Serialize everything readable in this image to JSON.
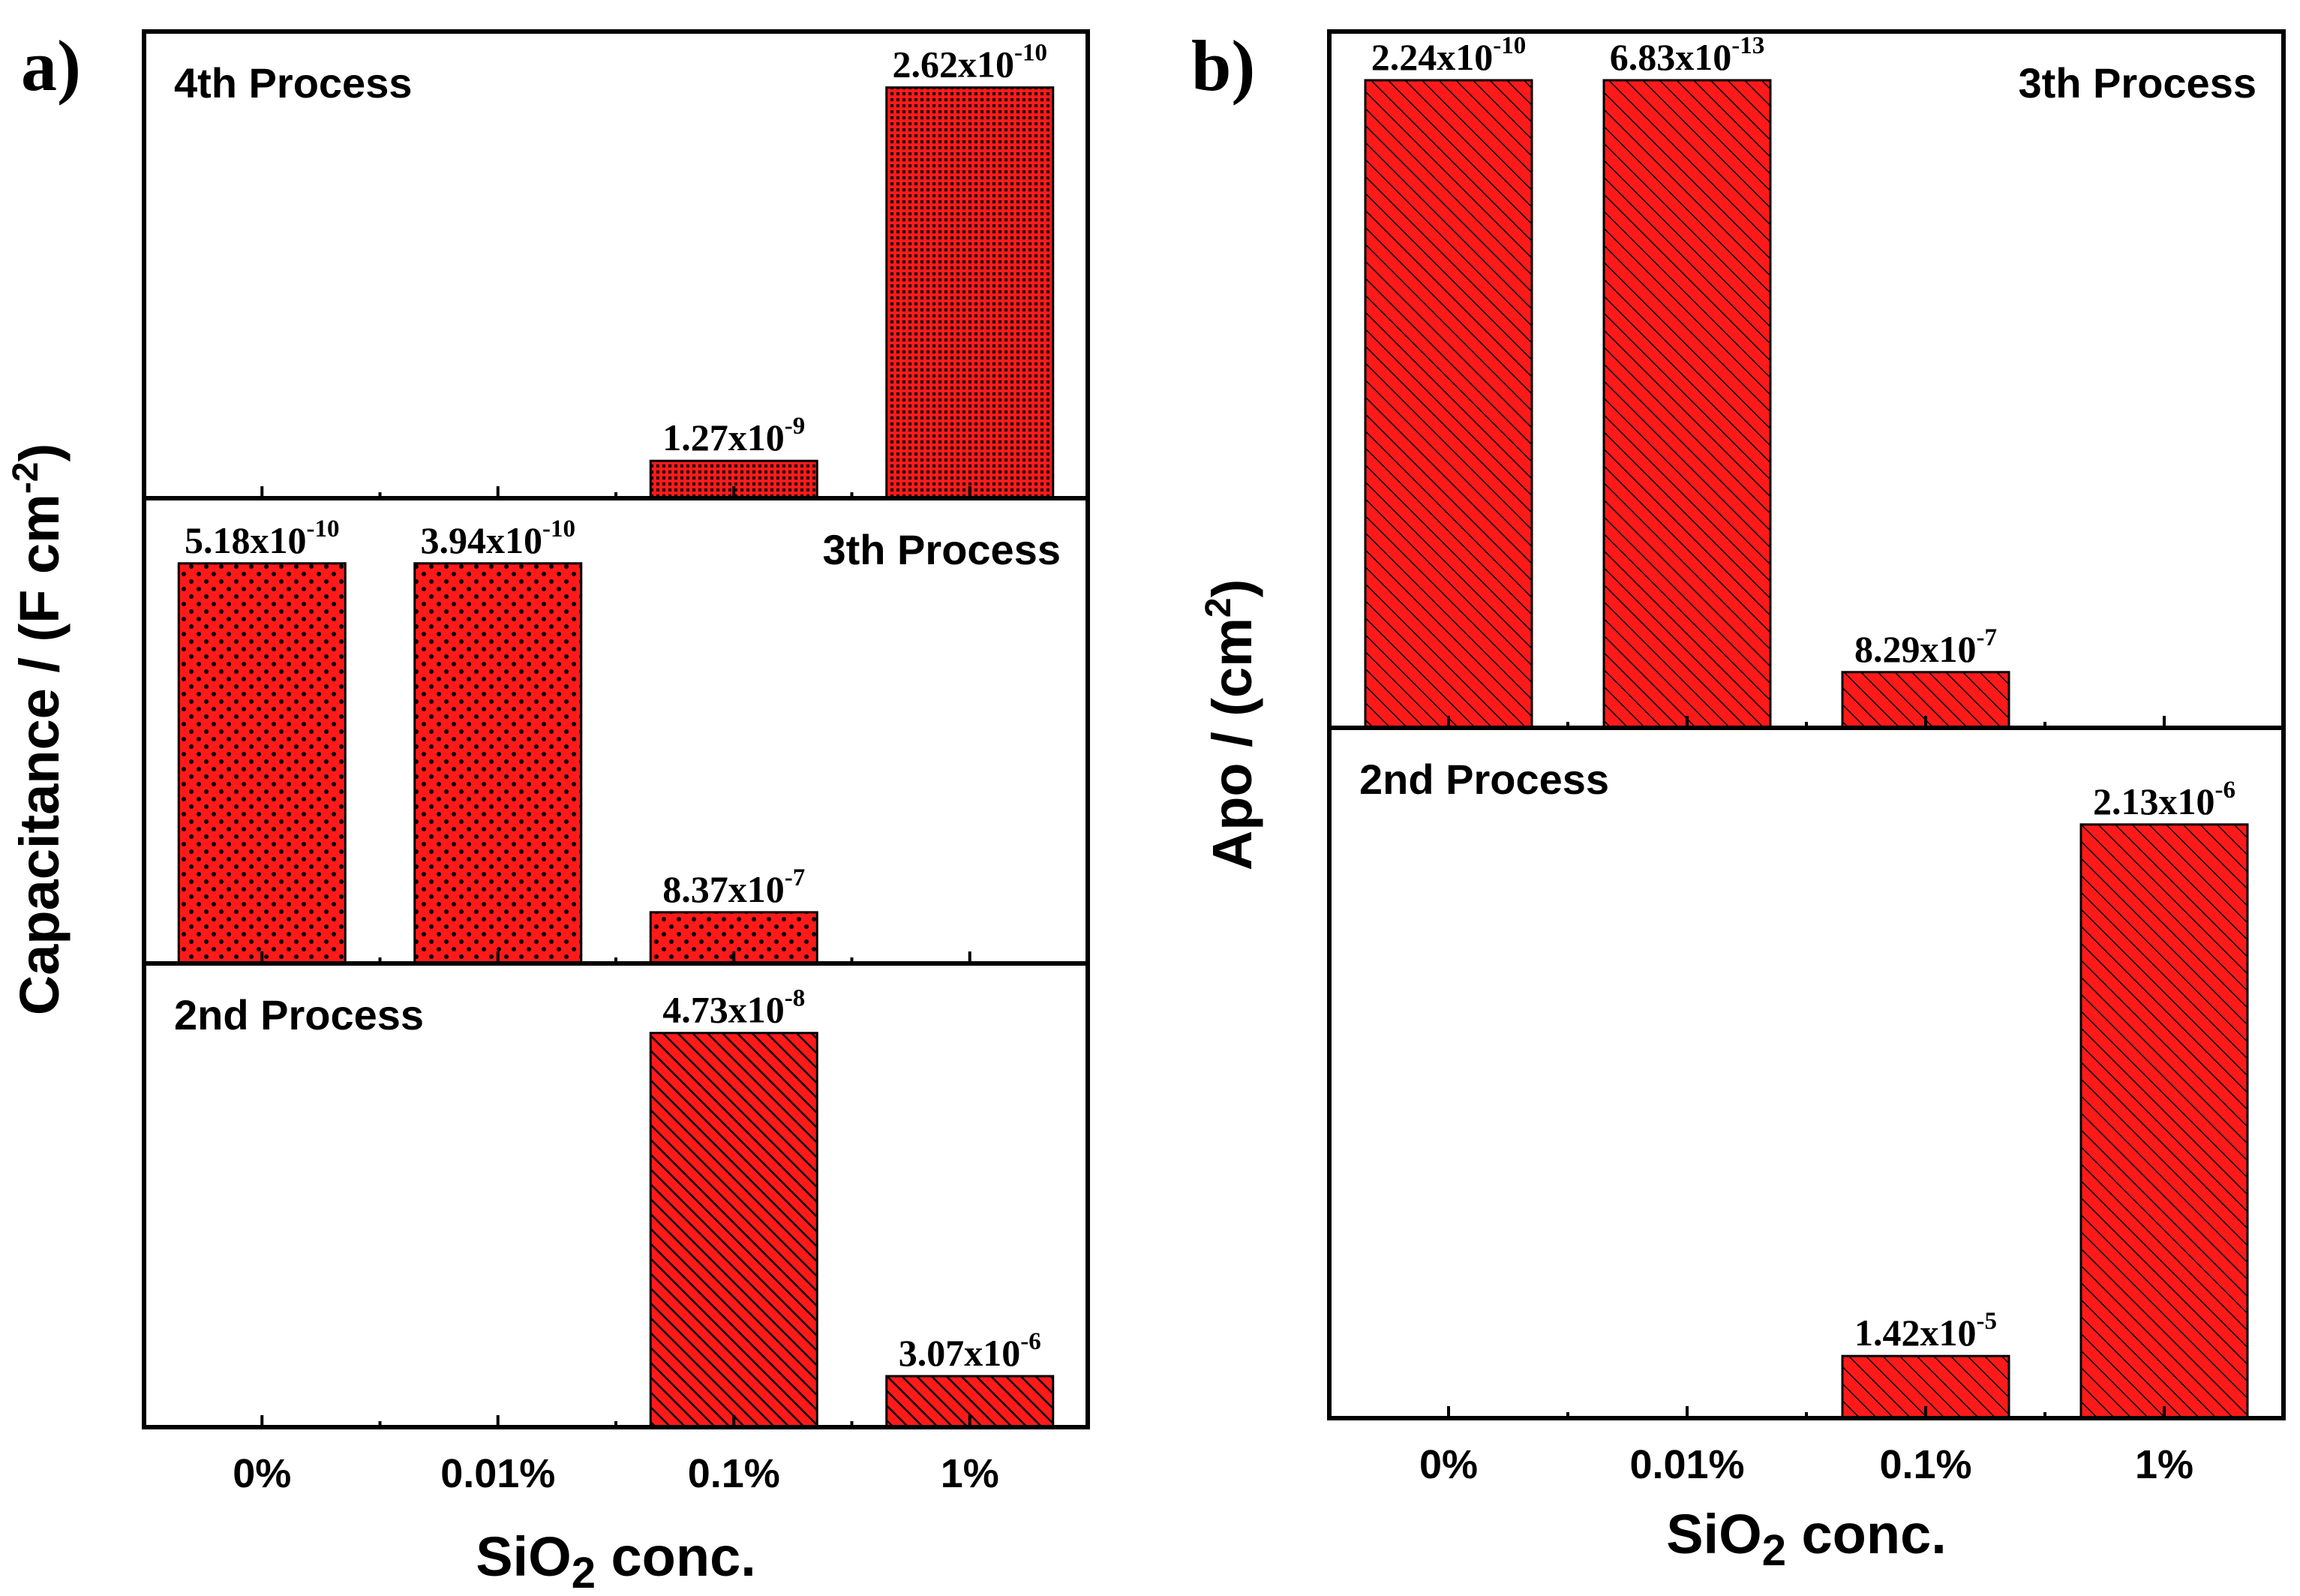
{
  "figure_labels": [
    "a)",
    "b)"
  ],
  "colors": {
    "bar_fill": "#ff1a1a",
    "pattern_ink": "#000000",
    "axis": "#000000"
  },
  "chart_data": [
    {
      "type": "bar",
      "panel_label": "a)",
      "categories": [
        "0%",
        "0.01%",
        "0.1%",
        "1%"
      ],
      "xlabel_main": "SiO",
      "xlabel_sub": "2",
      "xlabel_rest": " conc.",
      "ylabel_main": "Capacitance / (F cm",
      "ylabel_sup": "-2",
      "ylabel_end": ")",
      "grid": false,
      "subpanels": [
        {
          "name": "4th Process",
          "pattern": "grid",
          "label_side": "left",
          "values": [
            null,
            null,
            0.08,
            0.88
          ],
          "labels": [
            null,
            null,
            {
              "mantissa": "1.27x10",
              "exp": "-9"
            },
            {
              "mantissa": "2.62x10",
              "exp": "-10"
            }
          ]
        },
        {
          "name": "3th Process",
          "pattern": "dots",
          "label_side": "right",
          "values": [
            0.86,
            0.86,
            0.11,
            null
          ],
          "labels": [
            {
              "mantissa": "5.18x10",
              "exp": "-10"
            },
            {
              "mantissa": "3.94x10",
              "exp": "-10"
            },
            {
              "mantissa": "8.37x10",
              "exp": "-7"
            },
            null
          ]
        },
        {
          "name": "2nd Process",
          "pattern": "dense-hatch",
          "label_side": "left",
          "values": [
            null,
            null,
            0.85,
            0.11
          ],
          "labels": [
            null,
            null,
            {
              "mantissa": "4.73x10",
              "exp": "-8"
            },
            {
              "mantissa": "3.07x10",
              "exp": "-6"
            }
          ]
        }
      ]
    },
    {
      "type": "bar",
      "panel_label": "b)",
      "categories": [
        "0%",
        "0.01%",
        "0.1%",
        "1%"
      ],
      "xlabel_main": "SiO",
      "xlabel_sub": "2",
      "xlabel_rest": " conc.",
      "ylabel_main": "Apo / (cm",
      "ylabel_sup": "2",
      "ylabel_end": ")",
      "grid": false,
      "subpanels": [
        {
          "name": "3th Process",
          "pattern": "hatch",
          "label_side": "right",
          "values": [
            0.93,
            0.93,
            0.08,
            null
          ],
          "labels": [
            {
              "mantissa": "2.24x10",
              "exp": "-10"
            },
            {
              "mantissa": "6.83x10",
              "exp": "-13"
            },
            {
              "mantissa": "8.29x10",
              "exp": "-7"
            },
            null
          ]
        },
        {
          "name": "2nd Process",
          "pattern": "hatch",
          "label_side": "left",
          "values": [
            null,
            null,
            0.09,
            0.86
          ],
          "labels": [
            null,
            null,
            {
              "mantissa": "1.42x10",
              "exp": "-5"
            },
            {
              "mantissa": "2.13x10",
              "exp": "-6"
            }
          ]
        }
      ]
    }
  ]
}
